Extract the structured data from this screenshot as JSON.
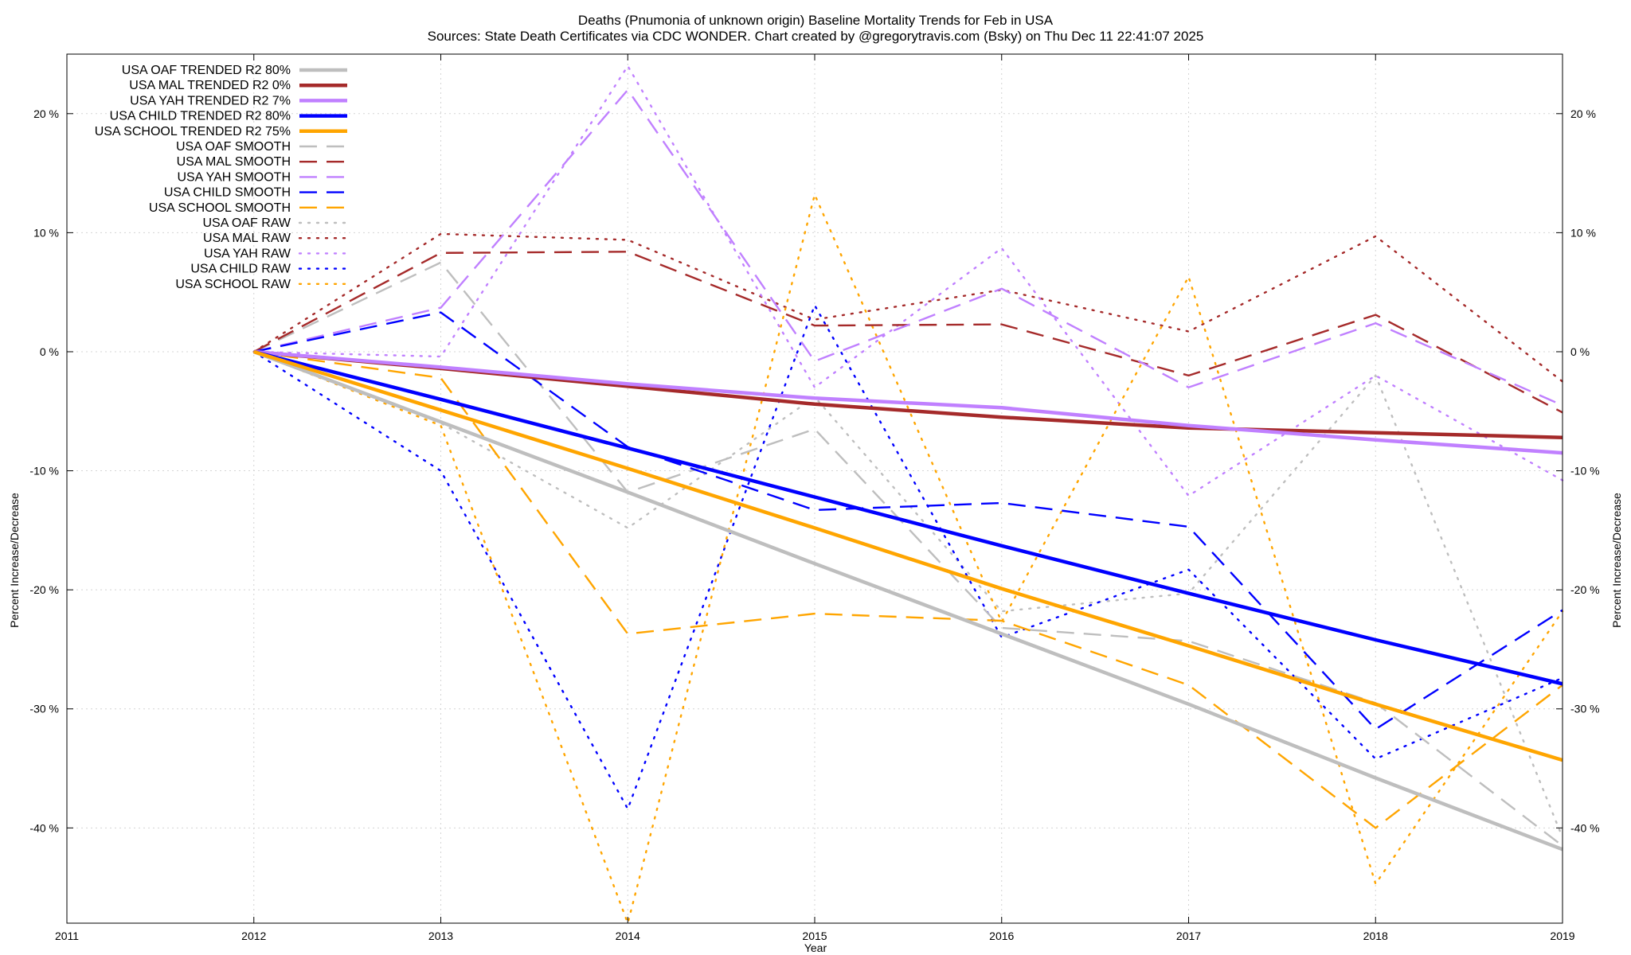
{
  "header": {
    "title": "Deaths (Pnumonia of unknown origin)  Baseline Mortality Trends for Feb in USA",
    "subtitle": "Sources: State Death Certificates via CDC WONDER.              Chart created by @gregorytravis.com (Bsky) on Thu Dec 11 22:41:07 2025"
  },
  "chart_data": {
    "type": "line",
    "xlabel": "Year",
    "ylabel": "Percent Increase/Decrease",
    "xlim": [
      2011,
      2019
    ],
    "ylim": [
      -48,
      25
    ],
    "x_ticks": [
      "2011",
      "2012",
      "2013",
      "2014",
      "2015",
      "2016",
      "2017",
      "2018",
      "2019"
    ],
    "y_ticks": [
      {
        "value": 20,
        "label": "20 %"
      },
      {
        "value": 10,
        "label": "10 %"
      },
      {
        "value": 0,
        "label": "0 %"
      },
      {
        "value": -10,
        "label": "-10 %"
      },
      {
        "value": -20,
        "label": "-20 %"
      },
      {
        "value": -30,
        "label": "-30 %"
      },
      {
        "value": -40,
        "label": "-40 %"
      }
    ],
    "grid": true,
    "legend_position": "top-left",
    "x": [
      2012,
      2013,
      2014,
      2015,
      2016,
      2017,
      2018,
      2019
    ],
    "series": [
      {
        "name": "USA OAF TRENDED R2  80%",
        "style": "solid",
        "color": "#bebebe",
        "values": [
          0,
          -5.9,
          -11.8,
          -17.8,
          -23.7,
          -29.6,
          -35.8,
          -41.8
        ]
      },
      {
        "name": "USA MAL TRENDED R2   0%",
        "style": "solid",
        "color": "#a52a2a",
        "values": [
          0,
          -1.4,
          -2.9,
          -4.4,
          -5.5,
          -6.4,
          -6.8,
          -7.2
        ]
      },
      {
        "name": "USA YAH TRENDED R2   7%",
        "style": "solid",
        "color": "#c080ff",
        "values": [
          0,
          -1.3,
          -2.7,
          -3.9,
          -4.7,
          -6.2,
          -7.4,
          -8.5
        ]
      },
      {
        "name": "USA CHILD TRENDED R2  80%",
        "style": "solid",
        "color": "#0000ff",
        "values": [
          0,
          -4.0,
          -8.1,
          -12.2,
          -16.3,
          -20.3,
          -24.2,
          -27.9
        ]
      },
      {
        "name": "USA SCHOOL TRENDED R2  75%",
        "style": "solid",
        "color": "#ffa500",
        "values": [
          0,
          -4.9,
          -9.8,
          -14.8,
          -19.9,
          -24.7,
          -29.6,
          -34.3
        ]
      },
      {
        "name": "USA OAF SMOOTH",
        "style": "dash",
        "color": "#bebebe",
        "values": [
          0,
          7.5,
          -11.8,
          -6.5,
          -23.2,
          -24.3,
          -29.5,
          -41.5
        ]
      },
      {
        "name": "USA MAL SMOOTH",
        "style": "dash",
        "color": "#a52a2a",
        "values": [
          0,
          8.3,
          8.4,
          2.2,
          2.3,
          -2.0,
          3.1,
          -5.1
        ]
      },
      {
        "name": "USA YAH SMOOTH",
        "style": "dash",
        "color": "#c080ff",
        "values": [
          0,
          3.7,
          22.0,
          -0.8,
          5.3,
          -3.0,
          2.4,
          -4.5
        ]
      },
      {
        "name": "USA CHILD SMOOTH",
        "style": "dash",
        "color": "#0000ff",
        "values": [
          0,
          3.3,
          -8.0,
          -13.3,
          -12.7,
          -14.7,
          -31.7,
          -21.7
        ]
      },
      {
        "name": "USA SCHOOL SMOOTH",
        "style": "dash",
        "color": "#ffa500",
        "values": [
          0,
          -2.2,
          -23.7,
          -22.0,
          -22.6,
          -28.0,
          -40.0,
          -28.0
        ]
      },
      {
        "name": "USA OAF RAW",
        "style": "dot",
        "color": "#bebebe",
        "values": [
          0,
          -6.0,
          -14.8,
          -3.8,
          -21.8,
          -20.3,
          -2.0,
          -40.8
        ]
      },
      {
        "name": "USA MAL RAW",
        "style": "dot",
        "color": "#a52a2a",
        "values": [
          0,
          9.9,
          9.4,
          2.7,
          5.2,
          1.7,
          9.7,
          -2.5
        ]
      },
      {
        "name": "USA YAH RAW",
        "style": "dot",
        "color": "#c080ff",
        "values": [
          0,
          -0.4,
          24.0,
          -3.0,
          8.7,
          -12.1,
          -2.0,
          -10.8
        ]
      },
      {
        "name": "USA CHILD RAW",
        "style": "dot",
        "color": "#0000ff",
        "values": [
          0,
          -10.0,
          -38.4,
          3.9,
          -24.0,
          -18.3,
          -34.2,
          -27.4
        ]
      },
      {
        "name": "USA SCHOOL RAW",
        "style": "dot",
        "color": "#ffa500",
        "values": [
          0,
          -6.2,
          -48.0,
          13.2,
          -22.7,
          6.3,
          -44.7,
          -21.8
        ]
      }
    ]
  }
}
